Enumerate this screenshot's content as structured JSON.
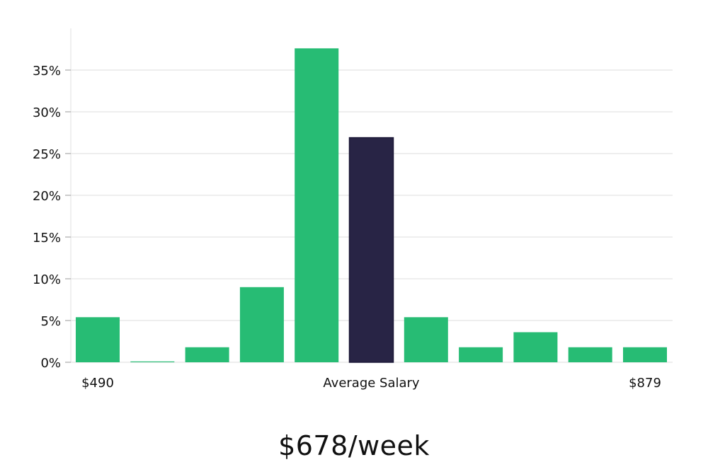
{
  "headline": "$678/week",
  "colors": {
    "bar": "#27BC74",
    "highlight": "#282445",
    "grid": "#DDDDDD",
    "axis": "#E2E2E2"
  },
  "chart_data": {
    "type": "bar",
    "title": "",
    "xlabel": "",
    "ylabel": "",
    "ylim": [
      0,
      0.4
    ],
    "yticks": [
      {
        "value": 0.0,
        "label": "0%"
      },
      {
        "value": 0.05,
        "label": "5%"
      },
      {
        "value": 0.1,
        "label": "10%"
      },
      {
        "value": 0.15,
        "label": "15%"
      },
      {
        "value": 0.2,
        "label": "20%"
      },
      {
        "value": 0.25,
        "label": "25%"
      },
      {
        "value": 0.3,
        "label": "30%"
      },
      {
        "value": 0.35,
        "label": "35%"
      }
    ],
    "values": [
      0.054,
      0.001,
      0.018,
      0.09,
      0.376,
      0.269,
      0.054,
      0.018,
      0.036,
      0.018,
      0.018
    ],
    "highlight_index": 5,
    "x_labels": {
      "min": "$490",
      "average": "Average Salary",
      "max": "$879"
    },
    "grid": true
  }
}
